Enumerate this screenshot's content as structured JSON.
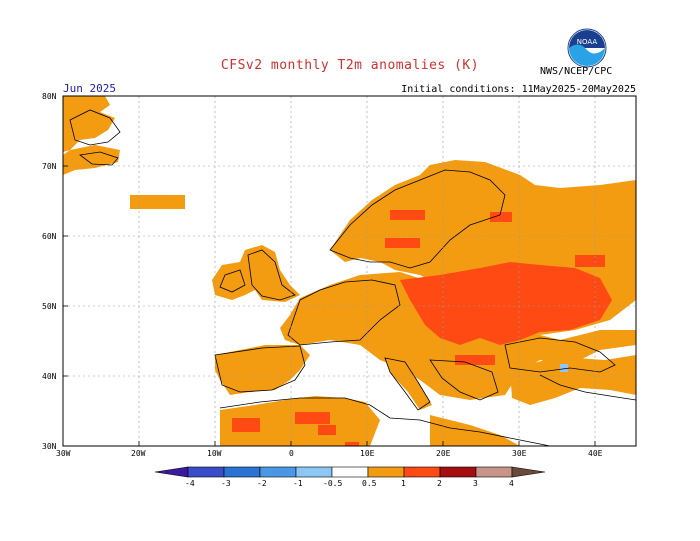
{
  "title": "CFSv2 monthly T2m anomalies (K)",
  "month": "Jun 2025",
  "initial_conditions": "Initial conditions: 11May2025-20May2025",
  "agency": "NWS/NCEP/CPC",
  "logo_text": "NOAA",
  "lat_labels": [
    "80N",
    "70N",
    "60N",
    "50N",
    "40N",
    "30N"
  ],
  "lon_labels": [
    "30W",
    "20W",
    "10W",
    "0",
    "10E",
    "20E",
    "30E",
    "40E"
  ],
  "colorbar": {
    "labels": [
      "-4",
      "-3",
      "-2",
      "-1",
      "-0.5",
      "0.5",
      "1",
      "2",
      "3",
      "4"
    ],
    "colors": [
      "#3c1aa0",
      "#3a4dc8",
      "#2c73d6",
      "#4a97e6",
      "#8ec6f4",
      "#ffffff",
      "#f39c12",
      "#ff4a14",
      "#a30f0f",
      "#c8948a",
      "#6b4a3c"
    ]
  },
  "colors": {
    "anomaly_05_1": "#f39c12",
    "anomaly_1_2": "#ff4a14",
    "anomaly_neg": "#8ec6f4",
    "title": "#d03030",
    "month": "#2020b0"
  }
}
